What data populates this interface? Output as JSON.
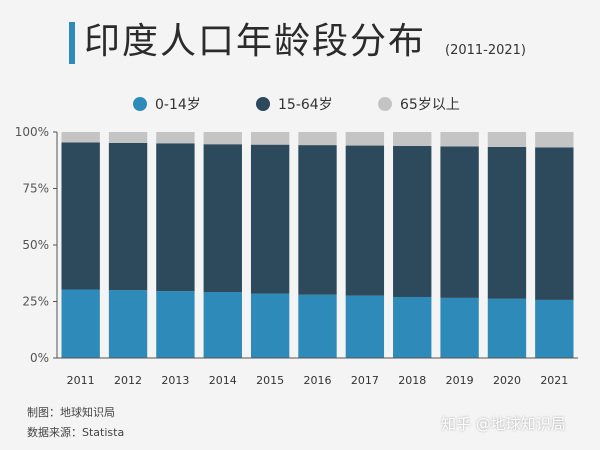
{
  "header": {
    "title": "印度人口年龄段分布",
    "subtitle": "(2011-2021)"
  },
  "footer": {
    "credit": "制图：地球知识局",
    "source": "数据来源：Statista"
  },
  "watermark": "知乎 @地球知识局",
  "chart_data": {
    "type": "bar",
    "stacked": true,
    "categories": [
      "2011",
      "2012",
      "2013",
      "2014",
      "2015",
      "2016",
      "2017",
      "2018",
      "2019",
      "2020",
      "2021"
    ],
    "series": [
      {
        "name": "0-14岁",
        "color": "#2e8ab8",
        "values": [
          30.3,
          30.0,
          29.6,
          29.2,
          28.5,
          28.0,
          27.6,
          27.0,
          26.6,
          26.2,
          25.7
        ]
      },
      {
        "name": "15-64岁",
        "color": "#2d4a5c",
        "values": [
          65.1,
          65.2,
          65.4,
          65.4,
          65.9,
          66.2,
          66.4,
          66.8,
          67.0,
          67.2,
          67.5
        ]
      },
      {
        "name": "65岁以上",
        "color": "#c4c4c4",
        "values": [
          4.6,
          4.8,
          5.0,
          5.4,
          5.6,
          5.8,
          6.0,
          6.2,
          6.4,
          6.6,
          6.8
        ]
      }
    ],
    "ylim": [
      0,
      100
    ],
    "yticks": [
      "0%",
      "25%",
      "50%",
      "75%",
      "100%"
    ],
    "legend": "top",
    "grid": false
  }
}
